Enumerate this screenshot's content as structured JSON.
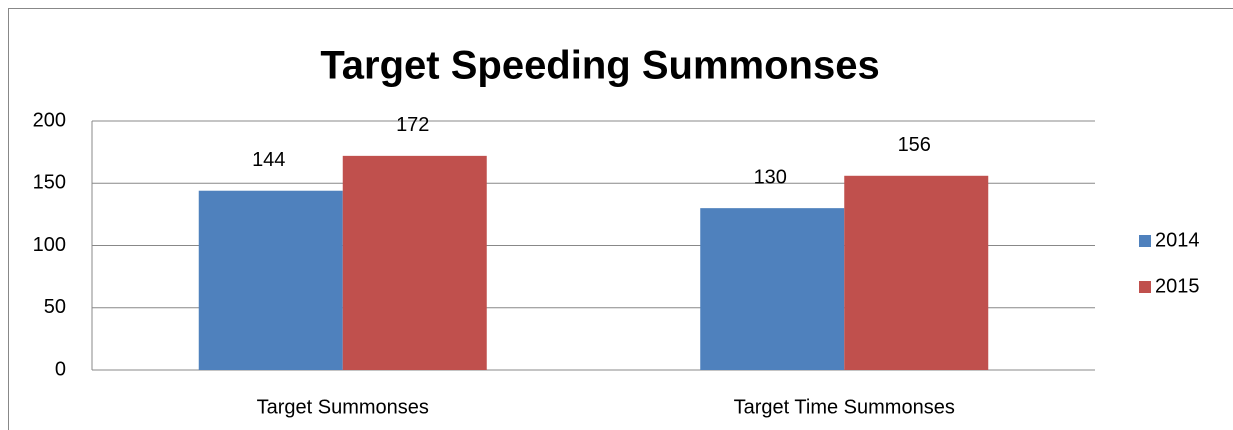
{
  "chart_data": {
    "type": "bar",
    "title": "Target Speeding Summonses",
    "categories": [
      "Target Summonses",
      "Target Time Summonses"
    ],
    "series": [
      {
        "name": "2014",
        "color": "#4f81bd",
        "values": [
          144,
          130
        ]
      },
      {
        "name": "2015",
        "color": "#c0504d",
        "values": [
          172,
          156
        ]
      }
    ],
    "ylim": [
      0,
      200
    ],
    "yticks": [
      0,
      50,
      100,
      150,
      200
    ],
    "grid": true,
    "legend": "right",
    "data_labels": true
  }
}
